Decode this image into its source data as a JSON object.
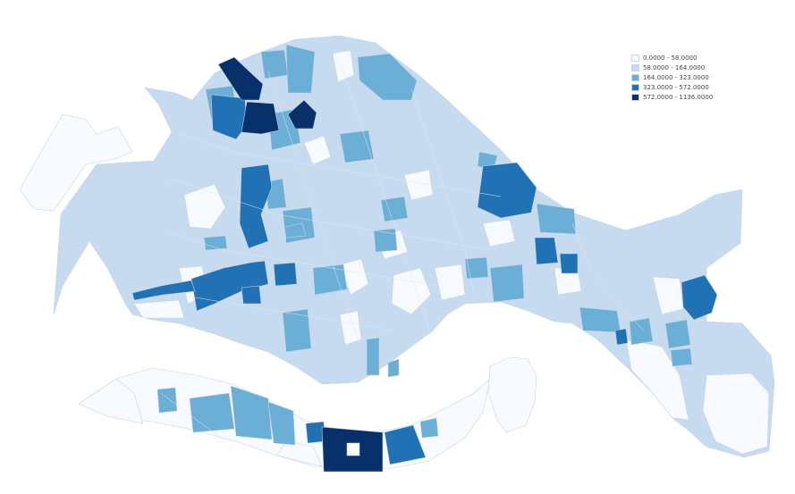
{
  "legend": {
    "classes": [
      {
        "label": "0.0000 - 58.0000",
        "color": "#f7fbff"
      },
      {
        "label": "58.0000 - 164.0000",
        "color": "#c6dbef"
      },
      {
        "label": "164.0000 - 323.0000",
        "color": "#6baed6"
      },
      {
        "label": "323.0000 - 572.0000",
        "color": "#2171b5"
      },
      {
        "label": "572.0000 - 1136.0000",
        "color": "#08306b"
      }
    ]
  },
  "colors": {
    "background": "#ffffff",
    "boundary": "#c6d3e3"
  }
}
